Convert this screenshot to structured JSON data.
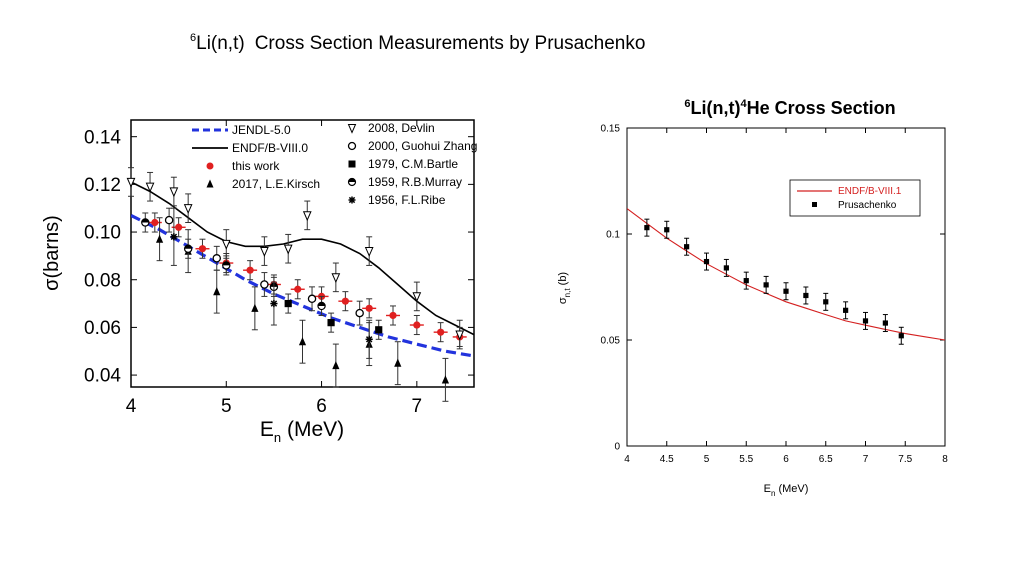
{
  "slide": {
    "title_sup": "6",
    "title_main": "Li(n,t)",
    "title_rest": "Cross Section Measurements by Prusachenko"
  },
  "chart_data": [
    {
      "type": "scatter",
      "title": "",
      "xlabel_main": "E",
      "xlabel_sub": "n",
      "xlabel_tail": " (MeV)",
      "ylabel": "σ(barns)",
      "xlim": [
        4,
        7.6
      ],
      "ylim": [
        0.035,
        0.147
      ],
      "xticks": [
        4,
        5,
        6,
        7
      ],
      "yticks": [
        0.04,
        0.06,
        0.08,
        0.1,
        0.12,
        0.14
      ],
      "ytick_labels": [
        "0.04",
        "0.06",
        "0.08",
        "0.10",
        "0.12",
        "0.14"
      ],
      "grid": false,
      "legend_position": "top",
      "legend": [
        {
          "label": "JENDL-5.0",
          "marker": "dashed-line",
          "color": "#2233dd"
        },
        {
          "label": "ENDF/B-VIII.0",
          "marker": "line",
          "color": "#000000"
        },
        {
          "label": "this work",
          "marker": "circle",
          "color": "#e02020"
        },
        {
          "label": "2017, L.E.Kirsch",
          "marker": "triangle",
          "color": "#000000"
        },
        {
          "label": "2008, Devlin",
          "marker": "triangle-down-open",
          "color": "#000000"
        },
        {
          "label": "2000, Guohui Zhang",
          "marker": "circle-open",
          "color": "#000000"
        },
        {
          "label": "1979, C.M.Bartle",
          "marker": "square",
          "color": "#000000"
        },
        {
          "label": "1959, R.B.Murray",
          "marker": "half-circle",
          "color": "#000000"
        },
        {
          "label": "1956, F.L.Ribe",
          "marker": "asterisk",
          "color": "#000000"
        }
      ],
      "curves": [
        {
          "name": "JENDL-5.0",
          "style": "dashed",
          "color": "#2233dd",
          "x": [
            4.0,
            4.3,
            4.6,
            4.9,
            5.2,
            5.5,
            5.8,
            6.1,
            6.4,
            6.7,
            7.0,
            7.3,
            7.6
          ],
          "y": [
            0.107,
            0.101,
            0.094,
            0.087,
            0.08,
            0.074,
            0.069,
            0.064,
            0.06,
            0.056,
            0.053,
            0.05,
            0.048
          ]
        },
        {
          "name": "ENDF/B-VIII.0",
          "style": "solid",
          "color": "#000000",
          "x": [
            4.0,
            4.2,
            4.4,
            4.6,
            4.8,
            5.0,
            5.2,
            5.4,
            5.6,
            5.8,
            6.0,
            6.2,
            6.4,
            6.6,
            6.8,
            7.0,
            7.2,
            7.4,
            7.6
          ],
          "y": [
            0.121,
            0.117,
            0.112,
            0.106,
            0.1,
            0.096,
            0.094,
            0.094,
            0.095,
            0.097,
            0.097,
            0.095,
            0.091,
            0.085,
            0.078,
            0.071,
            0.065,
            0.061,
            0.057
          ]
        }
      ],
      "series": [
        {
          "name": "this work",
          "marker": "circle",
          "color": "#e02020",
          "x": [
            4.25,
            4.5,
            4.75,
            5.0,
            5.25,
            5.5,
            5.75,
            6.0,
            6.25,
            6.5,
            6.75,
            7.0,
            7.25,
            7.45
          ],
          "y": [
            0.104,
            0.102,
            0.093,
            0.087,
            0.084,
            0.078,
            0.076,
            0.073,
            0.071,
            0.068,
            0.065,
            0.061,
            0.058,
            0.056
          ],
          "yerr": [
            0.004,
            0.004,
            0.004,
            0.004,
            0.004,
            0.004,
            0.004,
            0.004,
            0.004,
            0.004,
            0.004,
            0.004,
            0.004,
            0.004
          ]
        },
        {
          "name": "2017, L.E.Kirsch",
          "marker": "triangle",
          "color": "#000000",
          "x": [
            4.3,
            4.6,
            4.9,
            5.3,
            5.8,
            6.15,
            6.5,
            6.8,
            7.3
          ],
          "y": [
            0.097,
            0.092,
            0.075,
            0.068,
            0.054,
            0.044,
            0.053,
            0.045,
            0.038
          ],
          "yerr": [
            0.009,
            0.009,
            0.009,
            0.009,
            0.009,
            0.009,
            0.009,
            0.009,
            0.009
          ]
        },
        {
          "name": "2008, Devlin",
          "marker": "triangle-down-open",
          "color": "#000000",
          "x": [
            4.0,
            4.2,
            4.45,
            4.6,
            5.0,
            5.4,
            5.65,
            5.85,
            6.15,
            6.5,
            7.0,
            7.45
          ],
          "y": [
            0.121,
            0.119,
            0.117,
            0.11,
            0.095,
            0.092,
            0.093,
            0.107,
            0.081,
            0.092,
            0.073,
            0.057
          ],
          "yerr": [
            0.006,
            0.006,
            0.006,
            0.006,
            0.006,
            0.006,
            0.006,
            0.006,
            0.006,
            0.006,
            0.006,
            0.006
          ]
        },
        {
          "name": "2000, Guohui Zhang",
          "marker": "circle-open",
          "color": "#000000",
          "x": [
            4.4,
            4.9,
            5.4,
            5.9,
            6.4
          ],
          "y": [
            0.105,
            0.089,
            0.078,
            0.072,
            0.066
          ],
          "yerr": [
            0.005,
            0.005,
            0.005,
            0.005,
            0.005
          ]
        },
        {
          "name": "1979, C.M.Bartle",
          "marker": "square",
          "color": "#000000",
          "x": [
            5.65,
            6.1,
            6.6
          ],
          "y": [
            0.07,
            0.062,
            0.059
          ],
          "yerr": [
            0.004,
            0.004,
            0.004
          ]
        },
        {
          "name": "1959, R.B.Murray",
          "marker": "half-circle",
          "color": "#000000",
          "x": [
            4.15,
            4.6,
            5.0,
            5.5,
            6.0
          ],
          "y": [
            0.104,
            0.093,
            0.086,
            0.077,
            0.069
          ],
          "yerr": [
            0.004,
            0.004,
            0.004,
            0.004,
            0.004
          ]
        },
        {
          "name": "1956, F.L.Ribe",
          "marker": "asterisk",
          "color": "#000000",
          "x": [
            4.45,
            5.5,
            6.5
          ],
          "y": [
            0.098,
            0.07,
            0.055
          ],
          "yerr": [
            0.012,
            0.009,
            0.008
          ]
        }
      ]
    },
    {
      "type": "scatter",
      "title_sup1": "6",
      "title_a": "Li(n,t)",
      "title_sup2": "4",
      "title_b": "He Cross Section",
      "xlabel_main": "E",
      "xlabel_sub": "n",
      "xlabel_tail": " (MeV)",
      "ylabel_main": "σ",
      "ylabel_sub": "n,t",
      "ylabel_tail": " (b)",
      "xlim": [
        4,
        8
      ],
      "ylim": [
        0,
        0.15
      ],
      "xticks": [
        4,
        4.5,
        5,
        5.5,
        6,
        6.5,
        7,
        7.5,
        8
      ],
      "xtick_labels": [
        "4",
        "4.5",
        "5",
        "5.5",
        "6",
        "6.5",
        "7",
        "7.5",
        "8"
      ],
      "yticks": [
        0,
        0.05,
        0.1,
        0.15
      ],
      "ytick_labels": [
        "0",
        "0.05",
        "0.1",
        "0.15"
      ],
      "grid": false,
      "legend_position": "top-right",
      "legend": [
        {
          "label": "ENDF/B-VIII.1",
          "marker": "line",
          "color": "#d42020"
        },
        {
          "label": "Prusachenko",
          "marker": "square",
          "color": "#000000"
        }
      ],
      "curves": [
        {
          "name": "ENDF/B-VIII.1",
          "color": "#d42020",
          "x": [
            4.0,
            4.25,
            4.5,
            4.75,
            5.0,
            5.25,
            5.5,
            5.75,
            6.0,
            6.25,
            6.5,
            6.75,
            7.0,
            7.25,
            7.5,
            7.75,
            8.0
          ],
          "y": [
            0.112,
            0.105,
            0.098,
            0.092,
            0.086,
            0.081,
            0.076,
            0.072,
            0.068,
            0.065,
            0.062,
            0.059,
            0.057,
            0.055,
            0.053,
            0.0515,
            0.05
          ]
        }
      ],
      "series": [
        {
          "name": "Prusachenko",
          "marker": "square",
          "color": "#000000",
          "x": [
            4.25,
            4.5,
            4.75,
            5.0,
            5.25,
            5.5,
            5.75,
            6.0,
            6.25,
            6.5,
            6.75,
            7.0,
            7.25,
            7.45
          ],
          "y": [
            0.103,
            0.102,
            0.094,
            0.087,
            0.084,
            0.078,
            0.076,
            0.073,
            0.071,
            0.068,
            0.064,
            0.059,
            0.058,
            0.052
          ],
          "yerr": [
            0.004,
            0.004,
            0.004,
            0.004,
            0.004,
            0.004,
            0.004,
            0.004,
            0.004,
            0.004,
            0.004,
            0.004,
            0.004,
            0.004
          ]
        }
      ]
    }
  ]
}
